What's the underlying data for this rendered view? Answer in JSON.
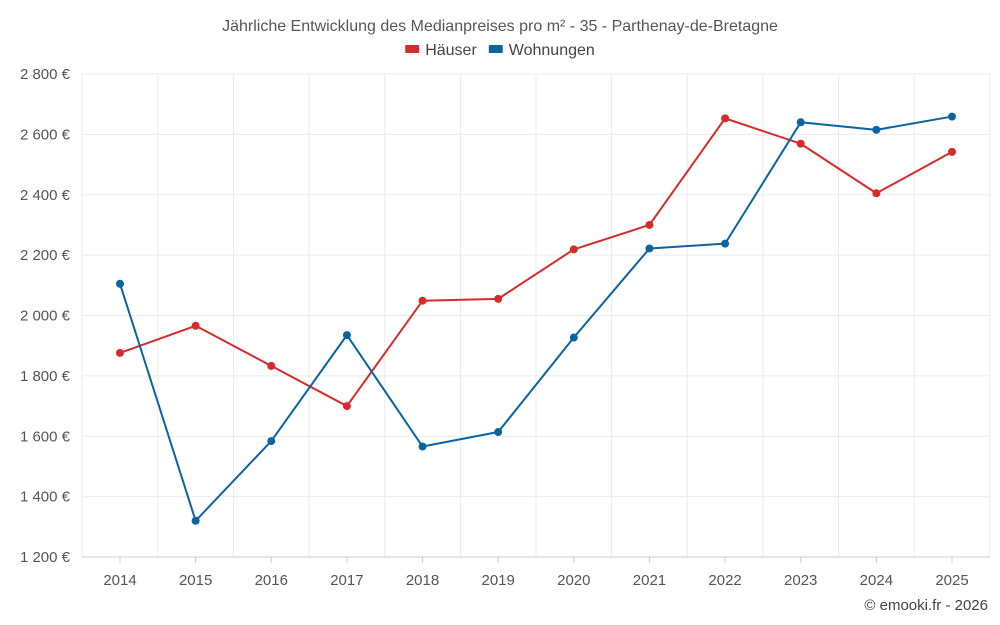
{
  "chart_data": {
    "type": "line",
    "title": "Jährliche Entwicklung des Medianpreises pro m² - 35 - Parthenay-de-Bretagne",
    "xlabel": "",
    "ylabel": "",
    "categories": [
      "2014",
      "2015",
      "2016",
      "2017",
      "2018",
      "2019",
      "2020",
      "2021",
      "2022",
      "2023",
      "2024",
      "2025"
    ],
    "ylim": [
      1200,
      2800
    ],
    "yticks": [
      1200,
      1400,
      1600,
      1800,
      2000,
      2200,
      2400,
      2600,
      2800
    ],
    "ytick_labels": [
      "1 200 €",
      "1 400 €",
      "1 600 €",
      "1 800 €",
      "2 000 €",
      "2 200 €",
      "2 400 €",
      "2 600 €",
      "2 800 €"
    ],
    "grid": true,
    "legend_position": "top-center",
    "series": [
      {
        "name": "Häuser",
        "color": "#d62b2b",
        "values": [
          1876,
          1966,
          1833,
          1700,
          2049,
          2055,
          2219,
          2300,
          2653,
          2569,
          2405,
          2542
        ]
      },
      {
        "name": "Wohnungen",
        "color": "#0a64a0",
        "values": [
          2105,
          1320,
          1584,
          1935,
          1566,
          1614,
          1927,
          2222,
          2238,
          2640,
          2615,
          2659
        ]
      }
    ]
  },
  "credit": "© emooki.fr - 2026"
}
